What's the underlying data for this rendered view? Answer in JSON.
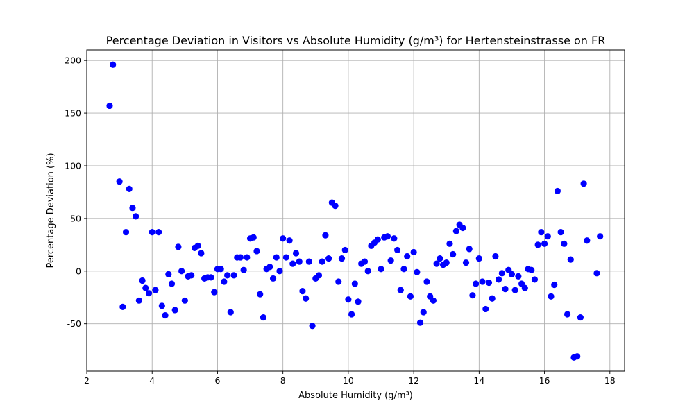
{
  "chart_data": {
    "type": "scatter",
    "title": "Percentage Deviation in Visitors vs Absolute Humidity (g/m³) for Hertensteinstrasse on FR",
    "xlabel": "Absolute Humidity (g/m³)",
    "ylabel": "Percentage Deviation (%)",
    "xlim": [
      2.0,
      18.45
    ],
    "ylim": [
      -95,
      210
    ],
    "xticks": [
      2,
      4,
      6,
      8,
      10,
      12,
      14,
      16,
      18
    ],
    "yticks": [
      -50,
      0,
      50,
      100,
      150,
      200
    ],
    "grid": true,
    "marker_color": "#0000ff",
    "points": [
      [
        2.7,
        157
      ],
      [
        2.8,
        196
      ],
      [
        3.0,
        85
      ],
      [
        3.1,
        -34
      ],
      [
        3.2,
        37
      ],
      [
        3.3,
        78
      ],
      [
        3.4,
        60
      ],
      [
        3.5,
        52
      ],
      [
        3.6,
        -28
      ],
      [
        3.7,
        -9
      ],
      [
        3.8,
        -16
      ],
      [
        3.9,
        -21
      ],
      [
        4.0,
        37
      ],
      [
        4.1,
        -18
      ],
      [
        4.2,
        37
      ],
      [
        4.3,
        -33
      ],
      [
        4.4,
        -42
      ],
      [
        4.5,
        -3
      ],
      [
        4.6,
        -12
      ],
      [
        4.7,
        -37
      ],
      [
        4.8,
        23
      ],
      [
        4.9,
        0
      ],
      [
        5.0,
        -28
      ],
      [
        5.1,
        -5
      ],
      [
        5.2,
        -4
      ],
      [
        5.3,
        22
      ],
      [
        5.4,
        24
      ],
      [
        5.5,
        17
      ],
      [
        5.6,
        -7
      ],
      [
        5.7,
        -6
      ],
      [
        5.8,
        -6
      ],
      [
        5.9,
        -20
      ],
      [
        6.0,
        2
      ],
      [
        6.1,
        2
      ],
      [
        6.2,
        -10
      ],
      [
        6.3,
        -4
      ],
      [
        6.4,
        -39
      ],
      [
        6.5,
        -4
      ],
      [
        6.6,
        13
      ],
      [
        6.7,
        13
      ],
      [
        6.8,
        1
      ],
      [
        6.9,
        13
      ],
      [
        7.0,
        31
      ],
      [
        7.1,
        32
      ],
      [
        7.2,
        19
      ],
      [
        7.3,
        -22
      ],
      [
        7.4,
        -44
      ],
      [
        7.5,
        2
      ],
      [
        7.6,
        4
      ],
      [
        7.7,
        -7
      ],
      [
        7.8,
        13
      ],
      [
        7.9,
        0
      ],
      [
        8.0,
        31
      ],
      [
        8.1,
        13
      ],
      [
        8.2,
        29
      ],
      [
        8.3,
        7
      ],
      [
        8.4,
        17
      ],
      [
        8.5,
        9
      ],
      [
        8.6,
        -19
      ],
      [
        8.7,
        -26
      ],
      [
        8.8,
        9
      ],
      [
        8.9,
        -52
      ],
      [
        9.0,
        -7
      ],
      [
        9.1,
        -4
      ],
      [
        9.2,
        9
      ],
      [
        9.3,
        34
      ],
      [
        9.4,
        12
      ],
      [
        9.5,
        65
      ],
      [
        9.6,
        62
      ],
      [
        9.7,
        -10
      ],
      [
        9.8,
        12
      ],
      [
        9.9,
        20
      ],
      [
        10.0,
        -27
      ],
      [
        10.1,
        -41
      ],
      [
        10.2,
        -12
      ],
      [
        10.3,
        -29
      ],
      [
        10.4,
        7
      ],
      [
        10.5,
        9
      ],
      [
        10.6,
        0
      ],
      [
        10.7,
        24
      ],
      [
        10.8,
        27
      ],
      [
        10.9,
        30
      ],
      [
        11.0,
        2
      ],
      [
        11.1,
        32
      ],
      [
        11.2,
        33
      ],
      [
        11.3,
        10
      ],
      [
        11.4,
        31
      ],
      [
        11.5,
        20
      ],
      [
        11.6,
        -18
      ],
      [
        11.7,
        2
      ],
      [
        11.8,
        14
      ],
      [
        11.9,
        -24
      ],
      [
        12.0,
        18
      ],
      [
        12.1,
        -1
      ],
      [
        12.2,
        -49
      ],
      [
        12.3,
        -39
      ],
      [
        12.4,
        -10
      ],
      [
        12.5,
        -24
      ],
      [
        12.6,
        -28
      ],
      [
        12.7,
        7
      ],
      [
        12.8,
        12
      ],
      [
        12.9,
        6
      ],
      [
        13.0,
        8
      ],
      [
        13.1,
        26
      ],
      [
        13.2,
        16
      ],
      [
        13.3,
        38
      ],
      [
        13.4,
        44
      ],
      [
        13.5,
        41
      ],
      [
        13.6,
        8
      ],
      [
        13.7,
        21
      ],
      [
        13.8,
        -23
      ],
      [
        13.9,
        -12
      ],
      [
        14.0,
        12
      ],
      [
        14.1,
        -10
      ],
      [
        14.2,
        -36
      ],
      [
        14.3,
        -11
      ],
      [
        14.4,
        -26
      ],
      [
        14.5,
        14
      ],
      [
        14.6,
        -8
      ],
      [
        14.7,
        -2
      ],
      [
        14.8,
        -17
      ],
      [
        14.9,
        1
      ],
      [
        15.0,
        -3
      ],
      [
        15.1,
        -18
      ],
      [
        15.2,
        -5
      ],
      [
        15.3,
        -12
      ],
      [
        15.4,
        -16
      ],
      [
        15.5,
        2
      ],
      [
        15.6,
        1
      ],
      [
        15.7,
        -8
      ],
      [
        15.8,
        25
      ],
      [
        15.9,
        37
      ],
      [
        16.0,
        26
      ],
      [
        16.1,
        33
      ],
      [
        16.2,
        -24
      ],
      [
        16.3,
        -13
      ],
      [
        16.4,
        76
      ],
      [
        16.5,
        37
      ],
      [
        16.6,
        26
      ],
      [
        16.7,
        -41
      ],
      [
        16.8,
        11
      ],
      [
        16.9,
        -82
      ],
      [
        17.0,
        -81
      ],
      [
        17.1,
        -44
      ],
      [
        17.2,
        83
      ],
      [
        17.3,
        29
      ],
      [
        17.6,
        -2
      ],
      [
        17.7,
        33
      ]
    ]
  }
}
